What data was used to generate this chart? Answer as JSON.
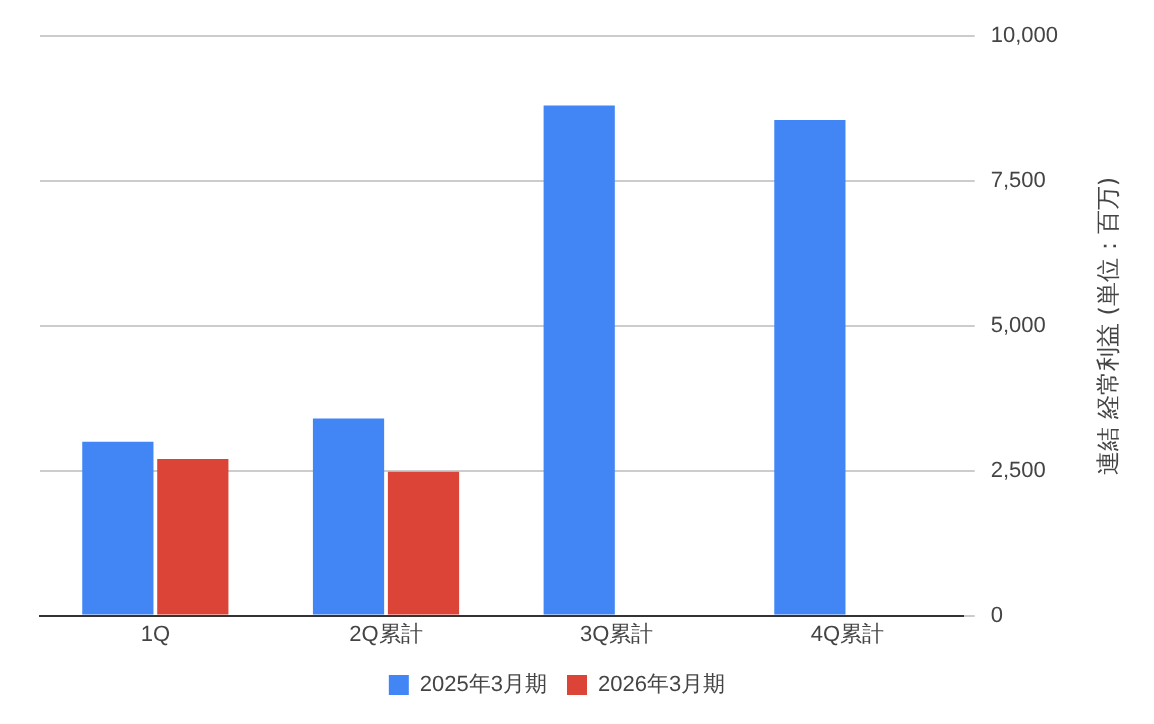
{
  "chart_data": {
    "type": "bar",
    "categories": [
      "1Q",
      "2Q累計",
      "3Q累計",
      "4Q累計"
    ],
    "series": [
      {
        "name": "2025年3月期",
        "color": "#4285f4",
        "values": [
          3000,
          3400,
          8800,
          8550
        ]
      },
      {
        "name": "2026年3月期",
        "color": "#db4437",
        "values": [
          2700,
          2480,
          null,
          null
        ]
      }
    ],
    "ylabel": "連結 経常利益 (単位：百万)",
    "ylim": [
      0,
      10000
    ],
    "yticks": [
      {
        "value": 0,
        "label": "0"
      },
      {
        "value": 2500,
        "label": "2,500"
      },
      {
        "value": 5000,
        "label": "5,000"
      },
      {
        "value": 7500,
        "label": "7,500"
      },
      {
        "value": 10000,
        "label": "10,000"
      }
    ],
    "grid": "y",
    "legend": "bottom"
  }
}
